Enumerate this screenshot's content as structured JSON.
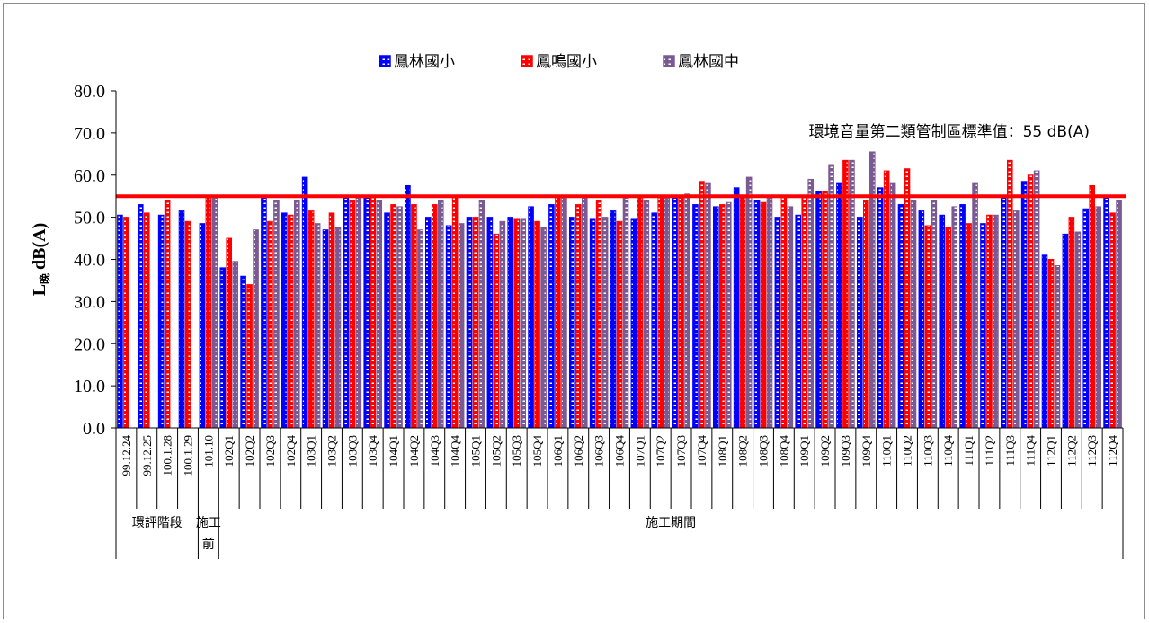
{
  "chart_data": {
    "type": "bar",
    "ylabel_main": "L",
    "ylabel_sub": "晚",
    "ylabel_unit": "dB(A)",
    "ylim": [
      0,
      80
    ],
    "yticks": [
      "0.0",
      "10.0",
      "20.0",
      "30.0",
      "40.0",
      "50.0",
      "60.0",
      "70.0",
      "80.0"
    ],
    "threshold": {
      "value": 55,
      "label": "環境音量第二類管制區標準值：55 dB(A)",
      "color": "#ff0000"
    },
    "categories": [
      "99.12.24",
      "99.12.25",
      "100.1.28",
      "100.1.29",
      "101.10",
      "102Q1",
      "102Q2",
      "102Q3",
      "102Q4",
      "103Q1",
      "103Q2",
      "103Q3",
      "103Q4",
      "104Q1",
      "104Q2",
      "104Q3",
      "104Q4",
      "105Q1",
      "105Q2",
      "105Q3",
      "105Q4",
      "106Q1",
      "106Q2",
      "106Q3",
      "106Q4",
      "107Q1",
      "107Q2",
      "107Q3",
      "107Q4",
      "108Q1",
      "108Q2",
      "108Q3",
      "108Q4",
      "109Q1",
      "109Q2",
      "109Q3",
      "109Q4",
      "110Q1",
      "110Q2",
      "110Q3",
      "110Q4",
      "111Q1",
      "111Q2",
      "111Q3",
      "111Q4",
      "112Q1",
      "112Q2",
      "112Q3",
      "112Q4"
    ],
    "groups": [
      {
        "label": "環評階段",
        "start": 0,
        "end": 3
      },
      {
        "label": "施工前",
        "line1": "施工",
        "line2": "前",
        "start": 4,
        "end": 4
      },
      {
        "label": "施工期間",
        "start": 5,
        "end": 48
      }
    ],
    "series": [
      {
        "name": "鳳林國小",
        "color": "#0000ff",
        "values": [
          50.5,
          53,
          50.5,
          51.5,
          48.5,
          38,
          36,
          54.5,
          51,
          59.5,
          47,
          54.5,
          54.5,
          51,
          57.5,
          50,
          48,
          50,
          50,
          50,
          52.5,
          53,
          50,
          49.5,
          51.5,
          49.5,
          51,
          54.5,
          53,
          52.5,
          57,
          54,
          50,
          50.5,
          56,
          58,
          50,
          57,
          53,
          51.5,
          50.5,
          53,
          48.5,
          54.5,
          58.5,
          41,
          46,
          52,
          54.5
        ]
      },
      {
        "name": "鳳鳴國小",
        "color": "#ff0000",
        "values": [
          50,
          51,
          54,
          49,
          55,
          45,
          34,
          49,
          50.5,
          51.5,
          51,
          54,
          55,
          53,
          53,
          53,
          55,
          50,
          46,
          49.5,
          49,
          55,
          53,
          54,
          49,
          55,
          55,
          54.5,
          58.5,
          53,
          55,
          53.5,
          55,
          55,
          56,
          63.5,
          54,
          61,
          61.5,
          48,
          47.5,
          48.5,
          50.5,
          63.5,
          60,
          40,
          50,
          57.5,
          51
        ]
      },
      {
        "name": "鳳林國中",
        "color": "#7b5a93",
        "values": [
          null,
          null,
          null,
          null,
          54.5,
          39.5,
          47,
          54,
          54,
          48.5,
          47.5,
          54.5,
          54,
          52.5,
          47,
          54,
          48.5,
          54,
          49,
          49.5,
          47.5,
          54.5,
          54.5,
          50,
          54.5,
          54,
          54.5,
          55.5,
          58,
          53.5,
          59.5,
          54.5,
          52.5,
          59,
          62.5,
          63.5,
          65.5,
          58,
          54,
          54,
          52.5,
          58,
          50.5,
          51.5,
          61,
          38.5,
          46.5,
          52.5,
          54
        ]
      }
    ]
  }
}
